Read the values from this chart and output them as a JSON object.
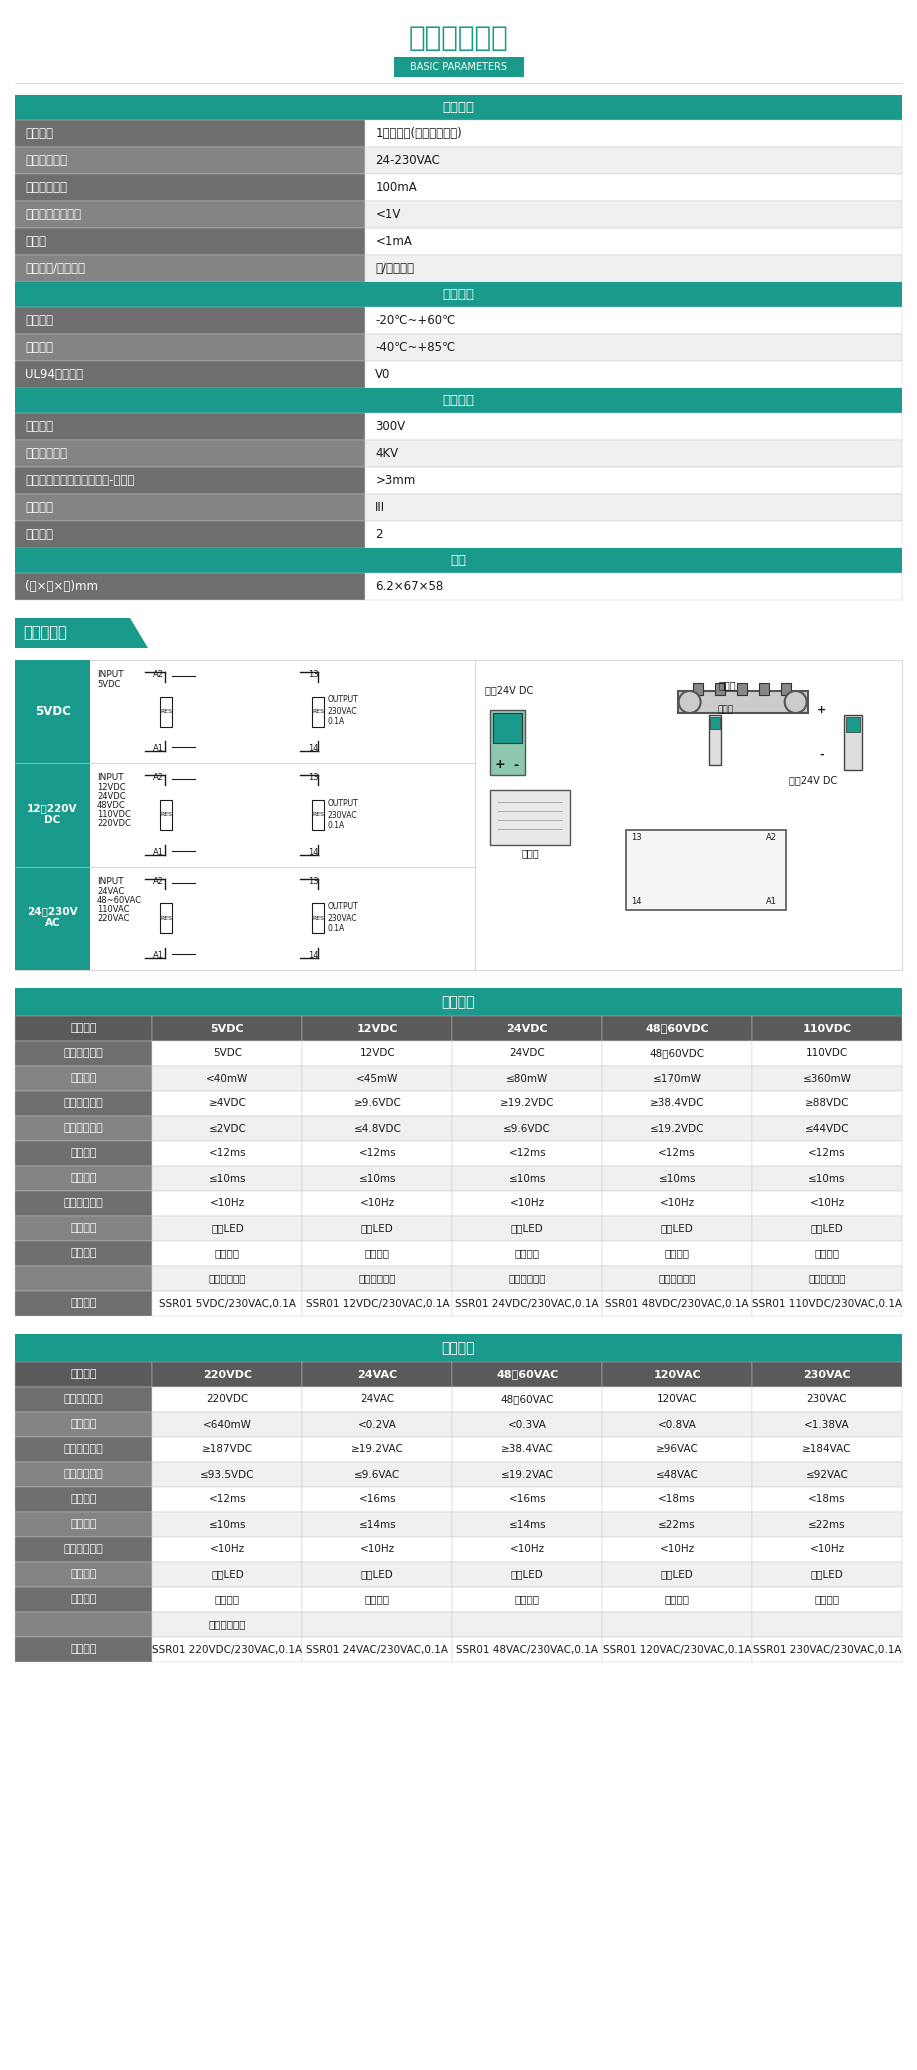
{
  "title": "产品规格参数",
  "subtitle": "BASIC PARAMETERS",
  "teal": "#1a9a8a",
  "dark_gray": "#7a7a7a",
  "med_gray": "#9a9a9a",
  "light_gray": "#f0f0f0",
  "white": "#ffffff",
  "black": "#1a1a1a",
  "border_color": "#c8c8c8",
  "row_dark_bg": "#717171",
  "row_light_bg": "#8e8e8e",
  "output_params_header": "输出参数",
  "output_params": [
    [
      "器件类型",
      "1常开触点(双向可控开关)"
    ],
    [
      "额定输出电压",
      "24-230VAC"
    ],
    [
      "额定输出电流",
      "100mA"
    ],
    [
      "最大负载的电压降",
      "<1V"
    ],
    [
      "漏电流",
      "<1mA"
    ],
    [
      "短路保护/保护回路",
      "无/压敏电阻"
    ]
  ],
  "general_params_header": "通用参数",
  "general_params": [
    [
      "工作温度",
      "-20℃~+60℃"
    ],
    [
      "存储温度",
      "-40℃~+85℃"
    ],
    [
      "UL94阻燃等级",
      "V0"
    ]
  ],
  "insulation_header": "绝缘等级",
  "insulation_params": [
    [
      "额定电压",
      "300V"
    ],
    [
      "额定浪涌电压",
      "4KV"
    ],
    [
      "电气间隙和爬电间距（输入-输出）",
      ">3mm"
    ],
    [
      "过压等级",
      "III"
    ],
    [
      "污染等级",
      "2"
    ]
  ],
  "size_header": "尺寸",
  "size_params": [
    [
      "(长×宽×高)mm",
      "6.2×67×58"
    ]
  ],
  "wiring_title": "接线示意图",
  "wiring_labels": [
    "5VDC",
    "12～220V DC",
    "24～230V AC"
  ],
  "wiring_inputs": [
    [
      "INPUT",
      "5VDC"
    ],
    [
      "INPUT",
      "12VDC",
      "24VDC",
      "48VDC",
      "110VDC",
      "220VDC"
    ],
    [
      "INPUT",
      "24VAC",
      "48~60VAC",
      "110VAC",
      "220VAC"
    ]
  ],
  "order_header": "订购信息",
  "order_cols1": [
    "输入数据",
    "5VDC",
    "12VDC",
    "24VDC",
    "48～60VDC",
    "110VDC"
  ],
  "order_rows1": [
    [
      "额定输入电压",
      "5VDC",
      "12VDC",
      "24VDC",
      "48～60VDC",
      "110VDC"
    ],
    [
      "额定功率",
      "<40mW",
      "<45mW",
      "≤80mW",
      "≤170mW",
      "≤360mW"
    ],
    [
      "最小工作电压",
      "≥4VDC",
      "≥9.6VDC",
      "≥19.2VDC",
      "≥38.4VDC",
      "≥88VDC"
    ],
    [
      "最大断开电压",
      "≤2VDC",
      "≤4.8VDC",
      "≤9.6VDC",
      "≤19.2VDC",
      "≤44VDC"
    ],
    [
      "断开延时",
      "<12ms",
      "<12ms",
      "<12ms",
      "<12ms",
      "<12ms"
    ],
    [
      "动作延时",
      "≤10ms",
      "≤10ms",
      "≤10ms",
      "≤10ms",
      "≤10ms"
    ],
    [
      "最大输入频率",
      "<10Hz",
      "<10Hz",
      "<10Hz",
      "<10Hz",
      "<10Hz"
    ],
    [
      "状态指示",
      "绿色LED",
      "绿色LED",
      "绿色LED",
      "绿色LED",
      "绿色LED"
    ],
    [
      "保护回路",
      "压敏电阻",
      "压敏电阻",
      "压敏电阻",
      "压敏电阻",
      "压敏电阻"
    ],
    [
      "",
      "反向电路保护",
      "反向电路保护",
      "反向电路保护",
      "反向电路保护",
      "反向电路保护"
    ],
    [
      "订购型号",
      "SSR01 5VDC/230VAC,0.1A",
      "SSR01 12VDC/230VAC,0.1A",
      "SSR01 24VDC/230VAC,0.1A",
      "SSR01 48VDC/230VAC,0.1A",
      "SSR01 110VDC/230VAC,0.1A"
    ]
  ],
  "order_cols2": [
    "输入数据",
    "220VDC",
    "24VAC",
    "48～60VAC",
    "120VAC",
    "230VAC"
  ],
  "order_rows2": [
    [
      "额定输入电压",
      "220VDC",
      "24VAC",
      "48～60VAC",
      "120VAC",
      "230VAC"
    ],
    [
      "额定功率",
      "<640mW",
      "<0.2VA",
      "<0.3VA",
      "<0.8VA",
      "<1.38VA"
    ],
    [
      "最小工作电压",
      "≥187VDC",
      "≥19.2VAC",
      "≥38.4VAC",
      "≥96VAC",
      "≥184VAC"
    ],
    [
      "最大断开电压",
      "≤93.5VDC",
      "≤9.6VAC",
      "≤19.2VAC",
      "≤48VAC",
      "≤92VAC"
    ],
    [
      "断开延时",
      "<12ms",
      "<16ms",
      "<16ms",
      "<18ms",
      "<18ms"
    ],
    [
      "动作延时",
      "≤10ms",
      "≤14ms",
      "≤14ms",
      "≤22ms",
      "≤22ms"
    ],
    [
      "最大输入频率",
      "<10Hz",
      "<10Hz",
      "<10Hz",
      "<10Hz",
      "<10Hz"
    ],
    [
      "状态指示",
      "绿色LED",
      "绿色LED",
      "绿色LED",
      "绿色LED",
      "绿色LED"
    ],
    [
      "保护回路",
      "压敏电阻",
      "压敏电阻",
      "压敏电阻",
      "压敏电阻",
      "压敏电阻"
    ],
    [
      "",
      "反向电路保护",
      "",
      "",
      "",
      ""
    ],
    [
      "订购型号",
      "SSR01 220VDC/230VAC,0.1A",
      "SSR01 24VAC/230VAC,0.1A",
      "SSR01 48VAC/230VAC,0.1A",
      "SSR01 120VAC/230VAC,0.1A",
      "SSR01 230VAC/230VAC,0.1A"
    ]
  ]
}
